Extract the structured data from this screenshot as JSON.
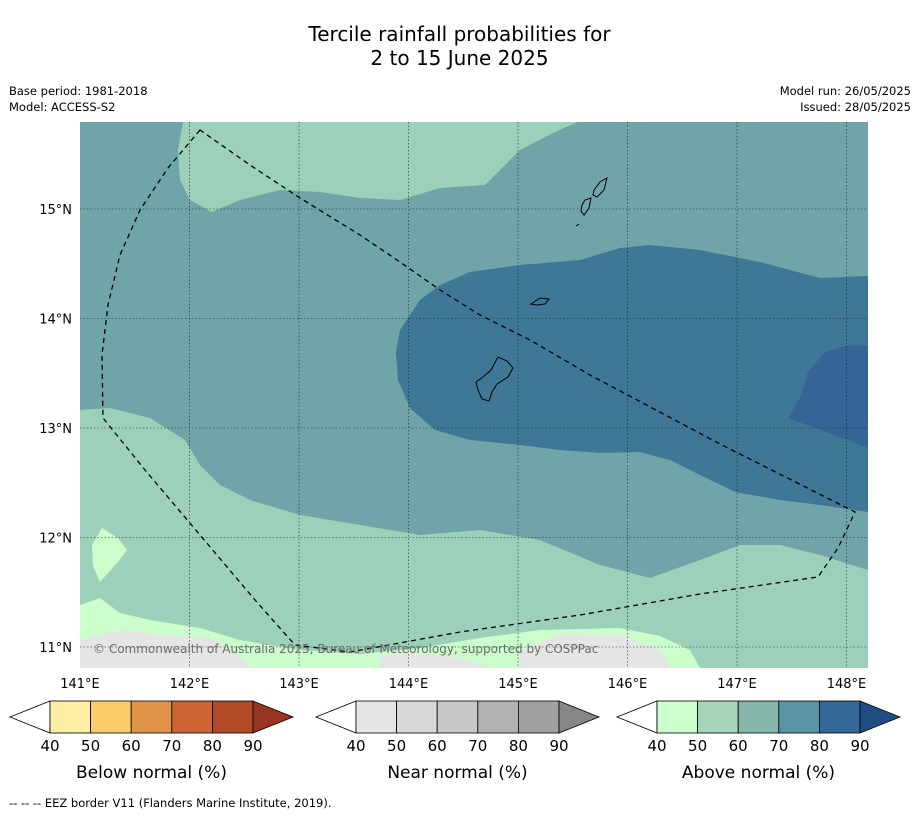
{
  "title_line1": "Tercile rainfall probabilities for",
  "title_line2": "2 to 15 June 2025",
  "base_period": "Base period: 1981-2018",
  "model": "Model: ACCESS-S2",
  "model_run": "Model run: 26/05/2025",
  "issued": "Issued: 28/05/2025",
  "copyright": "© Commonwealth of Australia 2025, Bureau of Meteorology, supported by COSPPac",
  "footnote": "--  --  -- EEZ border V11 (Flanders Marine Institute, 2019).",
  "map": {
    "lon_range": [
      140.9,
      148.2
    ],
    "lat_range": [
      10.8,
      15.8
    ],
    "lon_ticks": [
      "141°E",
      "142°E",
      "143°E",
      "144°E",
      "145°E",
      "146°E",
      "147°E",
      "148°E"
    ],
    "lat_ticks": [
      "15°N",
      "14°N",
      "13°N",
      "12°N",
      "11°N"
    ],
    "gridlines": true
  },
  "colorbars": [
    {
      "title": "Below normal (%)",
      "ticks": [
        "40",
        "50",
        "60",
        "70",
        "80",
        "90"
      ],
      "colors": [
        "#ffffff",
        "#fdeea3",
        "#fdcc66",
        "#e09248",
        "#cd6433",
        "#b04a26",
        "#983520"
      ]
    },
    {
      "title": "Near normal (%)",
      "ticks": [
        "40",
        "50",
        "60",
        "70",
        "80",
        "90"
      ],
      "colors": [
        "#ffffff",
        "#e5e5e5",
        "#d8d8d8",
        "#c8c8c8",
        "#b2b2b2",
        "#a0a0a0",
        "#878787"
      ]
    },
    {
      "title": "Above normal (%)",
      "ticks": [
        "40",
        "50",
        "60",
        "70",
        "80",
        "90"
      ],
      "colors": [
        "#ffffff",
        "#ccfdcc",
        "#a5d6bc",
        "#86b6ac",
        "#5a93a4",
        "#346896",
        "#1e4e82"
      ]
    }
  ],
  "categories": {
    "above_50": "#ccfdcc",
    "above_60": "#9dd0b8",
    "above_70": "#6fa4a8",
    "above_80": "#3f7896",
    "above_90": "#346596",
    "near_40": "#e5e5e5"
  }
}
